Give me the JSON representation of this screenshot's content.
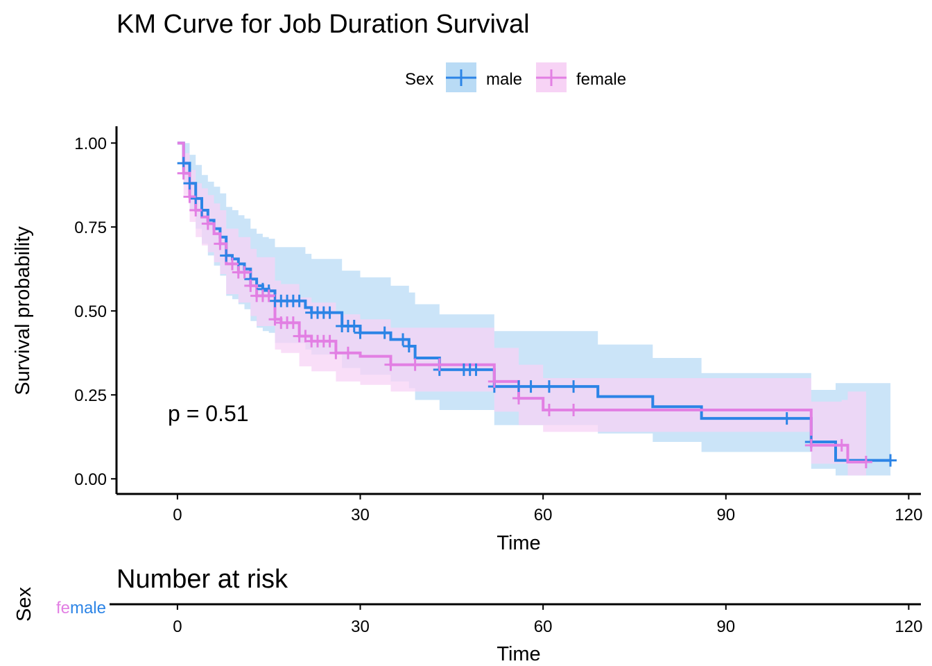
{
  "chart_data": {
    "type": "line",
    "title": "KM Curve for Job Duration Survival",
    "xlabel": "Time",
    "ylabel": "Survival probability",
    "xlim": [
      -10,
      122
    ],
    "ylim": [
      -0.045,
      1.05
    ],
    "x_ticks": [
      0,
      30,
      60,
      90,
      120
    ],
    "y_ticks": [
      0,
      0.25,
      0.5,
      0.75,
      1
    ],
    "y_tick_labels": [
      "0.00",
      "0.25",
      "0.50",
      "0.75",
      "1.00"
    ],
    "grid": false,
    "legend": {
      "title": "Sex",
      "position": "top"
    },
    "annotation": "p = 0.51",
    "series": [
      {
        "name": "male",
        "color": "#2C84E6",
        "band_color": "#B9DBF5",
        "steps": [
          [
            0,
            1.0
          ],
          [
            1,
            0.94
          ],
          [
            2,
            0.88
          ],
          [
            3,
            0.835
          ],
          [
            4,
            0.8
          ],
          [
            5,
            0.77
          ],
          [
            6,
            0.745
          ],
          [
            7,
            0.72
          ],
          [
            8,
            0.665
          ],
          [
            9,
            0.655
          ],
          [
            10,
            0.64
          ],
          [
            11,
            0.625
          ],
          [
            12,
            0.595
          ],
          [
            13,
            0.575
          ],
          [
            14,
            0.565
          ],
          [
            15,
            0.56
          ],
          [
            16,
            0.53
          ],
          [
            21,
            0.51
          ],
          [
            22,
            0.495
          ],
          [
            27,
            0.455
          ],
          [
            30,
            0.435
          ],
          [
            35,
            0.415
          ],
          [
            38,
            0.395
          ],
          [
            39,
            0.36
          ],
          [
            43,
            0.325
          ],
          [
            52,
            0.275
          ],
          [
            69,
            0.245
          ],
          [
            78,
            0.215
          ],
          [
            86,
            0.18
          ],
          [
            104,
            0.11
          ],
          [
            108,
            0.055
          ],
          [
            117,
            0.055
          ]
        ],
        "lower": [
          [
            0,
            1.0
          ],
          [
            1,
            0.88
          ],
          [
            2,
            0.8
          ],
          [
            3,
            0.745
          ],
          [
            4,
            0.7
          ],
          [
            5,
            0.665
          ],
          [
            6,
            0.635
          ],
          [
            7,
            0.605
          ],
          [
            8,
            0.545
          ],
          [
            9,
            0.535
          ],
          [
            10,
            0.52
          ],
          [
            11,
            0.505
          ],
          [
            12,
            0.47
          ],
          [
            13,
            0.45
          ],
          [
            14,
            0.44
          ],
          [
            15,
            0.435
          ],
          [
            16,
            0.405
          ],
          [
            21,
            0.385
          ],
          [
            22,
            0.37
          ],
          [
            27,
            0.33
          ],
          [
            30,
            0.31
          ],
          [
            35,
            0.29
          ],
          [
            38,
            0.27
          ],
          [
            39,
            0.235
          ],
          [
            43,
            0.205
          ],
          [
            52,
            0.16
          ],
          [
            69,
            0.135
          ],
          [
            78,
            0.11
          ],
          [
            86,
            0.08
          ],
          [
            104,
            0.03
          ],
          [
            108,
            0.01
          ],
          [
            117,
            0.01
          ]
        ],
        "upper": [
          [
            0,
            1.0
          ],
          [
            1,
            1.0
          ],
          [
            2,
            0.965
          ],
          [
            3,
            0.935
          ],
          [
            4,
            0.905
          ],
          [
            5,
            0.885
          ],
          [
            6,
            0.87
          ],
          [
            7,
            0.85
          ],
          [
            8,
            0.81
          ],
          [
            9,
            0.8
          ],
          [
            10,
            0.785
          ],
          [
            11,
            0.775
          ],
          [
            12,
            0.745
          ],
          [
            13,
            0.73
          ],
          [
            14,
            0.72
          ],
          [
            15,
            0.715
          ],
          [
            16,
            0.69
          ],
          [
            21,
            0.67
          ],
          [
            22,
            0.655
          ],
          [
            27,
            0.62
          ],
          [
            30,
            0.6
          ],
          [
            35,
            0.575
          ],
          [
            38,
            0.555
          ],
          [
            39,
            0.52
          ],
          [
            43,
            0.49
          ],
          [
            52,
            0.44
          ],
          [
            69,
            0.4
          ],
          [
            78,
            0.36
          ],
          [
            86,
            0.315
          ],
          [
            104,
            0.265
          ],
          [
            108,
            0.285
          ],
          [
            117,
            0.285
          ]
        ],
        "censor_x": [
          1,
          2,
          3,
          4,
          8,
          10,
          12,
          14,
          15,
          16,
          17,
          18,
          19,
          20,
          22,
          23,
          24,
          25,
          27,
          28,
          29,
          30,
          34,
          37,
          38,
          43,
          47,
          48,
          49,
          52,
          56,
          58,
          61,
          65,
          100,
          104,
          117
        ]
      },
      {
        "name": "female",
        "color": "#E27FE3",
        "band_color": "#F7D3F5",
        "steps": [
          [
            0,
            1.0
          ],
          [
            1,
            0.91
          ],
          [
            2,
            0.84
          ],
          [
            3,
            0.8
          ],
          [
            4,
            0.78
          ],
          [
            5,
            0.76
          ],
          [
            6,
            0.73
          ],
          [
            7,
            0.7
          ],
          [
            8,
            0.64
          ],
          [
            10,
            0.615
          ],
          [
            12,
            0.575
          ],
          [
            13,
            0.545
          ],
          [
            16,
            0.475
          ],
          [
            17,
            0.465
          ],
          [
            20,
            0.425
          ],
          [
            22,
            0.41
          ],
          [
            26,
            0.375
          ],
          [
            30,
            0.365
          ],
          [
            35,
            0.34
          ],
          [
            52,
            0.29
          ],
          [
            56,
            0.24
          ],
          [
            60,
            0.205
          ],
          [
            104,
            0.1
          ],
          [
            109,
            0.1
          ],
          [
            110,
            0.05
          ],
          [
            113,
            0.05
          ]
        ],
        "lower": [
          [
            0,
            1.0
          ],
          [
            1,
            0.845
          ],
          [
            2,
            0.765
          ],
          [
            3,
            0.72
          ],
          [
            4,
            0.695
          ],
          [
            5,
            0.675
          ],
          [
            6,
            0.645
          ],
          [
            7,
            0.61
          ],
          [
            8,
            0.55
          ],
          [
            10,
            0.525
          ],
          [
            12,
            0.485
          ],
          [
            13,
            0.455
          ],
          [
            16,
            0.385
          ],
          [
            17,
            0.375
          ],
          [
            20,
            0.335
          ],
          [
            22,
            0.32
          ],
          [
            26,
            0.29
          ],
          [
            30,
            0.28
          ],
          [
            35,
            0.26
          ],
          [
            52,
            0.2
          ],
          [
            56,
            0.16
          ],
          [
            60,
            0.14
          ],
          [
            104,
            0.045
          ],
          [
            109,
            0.045
          ],
          [
            110,
            0.01
          ],
          [
            113,
            0.01
          ]
        ],
        "upper": [
          [
            0,
            1.0
          ],
          [
            1,
            0.97
          ],
          [
            2,
            0.92
          ],
          [
            3,
            0.88
          ],
          [
            4,
            0.865
          ],
          [
            5,
            0.845
          ],
          [
            6,
            0.82
          ],
          [
            7,
            0.8
          ],
          [
            8,
            0.745
          ],
          [
            10,
            0.72
          ],
          [
            12,
            0.685
          ],
          [
            13,
            0.66
          ],
          [
            16,
            0.59
          ],
          [
            17,
            0.58
          ],
          [
            20,
            0.54
          ],
          [
            22,
            0.525
          ],
          [
            26,
            0.49
          ],
          [
            30,
            0.475
          ],
          [
            35,
            0.45
          ],
          [
            52,
            0.39
          ],
          [
            56,
            0.34
          ],
          [
            60,
            0.3
          ],
          [
            104,
            0.23
          ],
          [
            109,
            0.235
          ],
          [
            110,
            0.26
          ],
          [
            113,
            0.26
          ]
        ],
        "censor_x": [
          1,
          2,
          3,
          5,
          7,
          9,
          10,
          11,
          12,
          13,
          14,
          15,
          16,
          17,
          18,
          19,
          20,
          21,
          22,
          23,
          24,
          25,
          26,
          28,
          35,
          39,
          43,
          52,
          56,
          61,
          65,
          104,
          109,
          113
        ]
      }
    ]
  },
  "risk_table": {
    "title": "Number at risk",
    "strata_title": "Sex",
    "strata_label_female_part": "fe",
    "strata_label_male_part": "male",
    "xlabel": "Time",
    "x_ticks": [
      0,
      30,
      60,
      90,
      120
    ]
  }
}
